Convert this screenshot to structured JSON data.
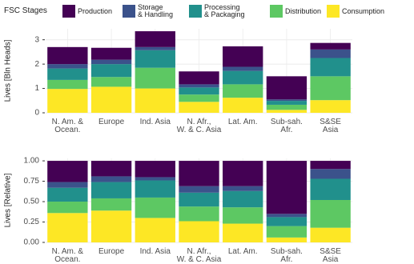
{
  "chart_data": [
    {
      "type": "stacked-bar",
      "legend_title": "FSC Stages",
      "y_label": "Lives [Bln Heads]",
      "categories": [
        "N. Am. &\nOcean.",
        "Europe",
        "Ind. Asia",
        "N. Afr.,\nW. & C. Asia",
        "Lat. Am.",
        "Sub-sah.\nAfr.",
        "S&SE\nAsia"
      ],
      "series": [
        {
          "name": "Consumption",
          "color": "#fde725",
          "values": [
            0.98,
            1.07,
            1.0,
            0.45,
            0.62,
            0.12,
            0.52
          ]
        },
        {
          "name": "Distribution",
          "color": "#5dc863",
          "values": [
            0.37,
            0.4,
            0.85,
            0.3,
            0.55,
            0.21,
            0.98
          ]
        },
        {
          "name": "Processing\n& Packaging",
          "color": "#21908c",
          "values": [
            0.47,
            0.53,
            0.72,
            0.29,
            0.55,
            0.16,
            0.75
          ]
        },
        {
          "name": "Storage\n& Handling",
          "color": "#3b528b",
          "values": [
            0.18,
            0.18,
            0.13,
            0.13,
            0.17,
            0.06,
            0.35
          ]
        },
        {
          "name": "Production",
          "color": "#440154",
          "values": [
            0.7,
            0.49,
            0.65,
            0.53,
            0.84,
            0.95,
            0.27
          ]
        }
      ],
      "ylim": [
        0,
        3.45
      ],
      "yticks": [
        0,
        1,
        2,
        3
      ],
      "grid": true
    },
    {
      "type": "stacked-bar",
      "y_label": "Lives [Relative]",
      "categories": [
        "N. Am. &\nOcean.",
        "Europe",
        "Ind. Asia",
        "N. Afr.,\nW. & C. Asia",
        "Lat. Am.",
        "Sub-sah.\nAfr.",
        "S&SE\nAsia"
      ],
      "series": [
        {
          "color": "#fde725",
          "values": [
            0.36,
            0.39,
            0.3,
            0.26,
            0.23,
            0.06,
            0.18
          ]
        },
        {
          "color": "#5dc863",
          "values": [
            0.14,
            0.15,
            0.25,
            0.18,
            0.2,
            0.14,
            0.34
          ]
        },
        {
          "color": "#21908c",
          "values": [
            0.17,
            0.2,
            0.21,
            0.17,
            0.2,
            0.11,
            0.26
          ]
        },
        {
          "color": "#3b528b",
          "values": [
            0.07,
            0.07,
            0.04,
            0.08,
            0.06,
            0.04,
            0.12
          ]
        },
        {
          "color": "#440154",
          "values": [
            0.26,
            0.19,
            0.2,
            0.31,
            0.31,
            0.65,
            0.1
          ]
        }
      ],
      "ylim": [
        0,
        1.03
      ],
      "yticks": [
        {
          "value": 0,
          "label": "0.00"
        },
        {
          "value": 0.25,
          "label": "0.25"
        },
        {
          "value": 0.5,
          "label": "0.50"
        },
        {
          "value": 0.75,
          "label": "0.75"
        },
        {
          "value": 1,
          "label": "1.00"
        }
      ],
      "grid": true
    }
  ]
}
